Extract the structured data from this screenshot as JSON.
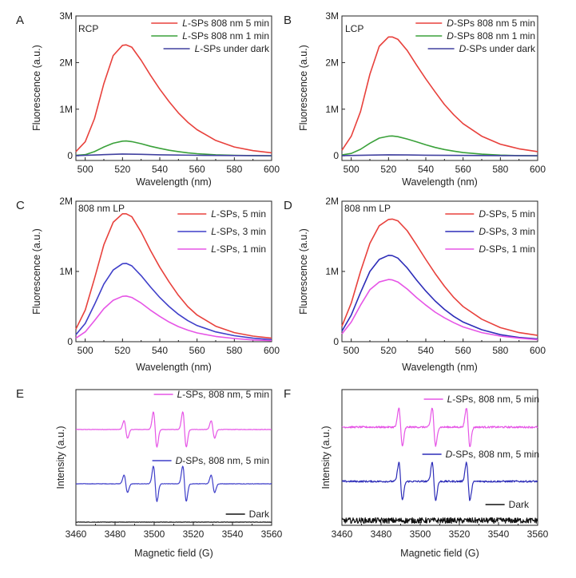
{
  "chart_data": [
    {
      "panel": "A",
      "type": "line",
      "annotation": "RCP",
      "xlabel": "Wavelength (nm)",
      "ylabel": "Fluorescence (a.u.)",
      "xlim": [
        495,
        600
      ],
      "ylim": [
        -100000,
        3000000
      ],
      "xticks": [
        500,
        520,
        540,
        560,
        580,
        600
      ],
      "xtick_labels": [
        "500",
        "520",
        "540",
        "560",
        "580",
        "600"
      ],
      "yticks": [
        0,
        1000000,
        2000000,
        3000000
      ],
      "ytick_labels": [
        "0",
        "1M",
        "2M",
        "3M"
      ],
      "legend_position": "top-right",
      "series": [
        {
          "name_pre": "",
          "name_italic": "L",
          "name_post": "-SPs 808 nm 5 min",
          "color": "#e8413c",
          "x": [
            495,
            500,
            505,
            510,
            515,
            520,
            522,
            525,
            530,
            535,
            540,
            545,
            550,
            555,
            560,
            570,
            580,
            590,
            600
          ],
          "y": [
            90000,
            300000,
            800000,
            1550000,
            2150000,
            2370000,
            2380000,
            2330000,
            2050000,
            1730000,
            1430000,
            1160000,
            920000,
            720000,
            560000,
            330000,
            190000,
            110000,
            65000
          ]
        },
        {
          "name_pre": "",
          "name_italic": "L",
          "name_post": "-SPs 808 nm 1 min",
          "color": "#3aa13a",
          "x": [
            495,
            500,
            505,
            510,
            515,
            520,
            522,
            525,
            530,
            535,
            540,
            545,
            550,
            555,
            560,
            570,
            580,
            590,
            600
          ],
          "y": [
            10000,
            25000,
            90000,
            190000,
            270000,
            315000,
            318000,
            305000,
            260000,
            205000,
            160000,
            120000,
            90000,
            65000,
            45000,
            22000,
            10000,
            4000,
            0
          ]
        },
        {
          "name_pre": "",
          "name_italic": "L",
          "name_post": "-SPs under dark",
          "color": "#40409f",
          "x": [
            495,
            510,
            520,
            530,
            540,
            560,
            580,
            600
          ],
          "y": [
            5000,
            25000,
            38000,
            32000,
            22000,
            12000,
            6000,
            3000
          ]
        }
      ]
    },
    {
      "panel": "B",
      "type": "line",
      "annotation": "LCP",
      "xlabel": "Wavelength (nm)",
      "ylabel": "Fluorescence (a.u.)",
      "xlim": [
        495,
        600
      ],
      "ylim": [
        -100000,
        3000000
      ],
      "xticks": [
        500,
        520,
        540,
        560,
        580,
        600
      ],
      "xtick_labels": [
        "500",
        "520",
        "540",
        "560",
        "580",
        "600"
      ],
      "yticks": [
        0,
        1000000,
        2000000,
        3000000
      ],
      "ytick_labels": [
        "0",
        "1M",
        "2M",
        "3M"
      ],
      "legend_position": "top-right",
      "series": [
        {
          "name_pre": "",
          "name_italic": "D",
          "name_post": "-SPs 808 nm 5 min",
          "color": "#e8413c",
          "x": [
            495,
            500,
            505,
            510,
            515,
            520,
            522,
            525,
            530,
            535,
            540,
            545,
            550,
            555,
            560,
            570,
            580,
            590,
            600
          ],
          "y": [
            120000,
            420000,
            950000,
            1750000,
            2350000,
            2550000,
            2550000,
            2500000,
            2260000,
            1950000,
            1650000,
            1370000,
            1100000,
            880000,
            690000,
            420000,
            250000,
            150000,
            90000
          ]
        },
        {
          "name_pre": "",
          "name_italic": "D",
          "name_post": "-SPs 808 nm 1 min",
          "color": "#3aa13a",
          "x": [
            495,
            500,
            505,
            510,
            515,
            520,
            522,
            525,
            530,
            535,
            540,
            545,
            550,
            555,
            560,
            570,
            580,
            590,
            600
          ],
          "y": [
            20000,
            50000,
            140000,
            270000,
            380000,
            420000,
            425000,
            410000,
            360000,
            300000,
            235000,
            180000,
            135000,
            100000,
            70000,
            35000,
            15000,
            5000,
            0
          ]
        },
        {
          "name_pre": "",
          "name_italic": "D",
          "name_post": "-SPs under dark",
          "color": "#40409f",
          "x": [
            495,
            510,
            520,
            530,
            540,
            560,
            580,
            600
          ],
          "y": [
            5000,
            15000,
            22000,
            18000,
            13000,
            8000,
            5000,
            3000
          ]
        }
      ]
    },
    {
      "panel": "C",
      "type": "line",
      "annotation": "808 nm LP",
      "xlabel": "Wavelength (nm)",
      "ylabel": "Fluorescence (a.u.)",
      "xlim": [
        495,
        600
      ],
      "ylim": [
        0,
        2000000
      ],
      "xticks": [
        500,
        520,
        540,
        560,
        580,
        600
      ],
      "xtick_labels": [
        "500",
        "520",
        "540",
        "560",
        "580",
        "600"
      ],
      "yticks": [
        0,
        1000000,
        2000000
      ],
      "ytick_labels": [
        "0",
        "1M",
        "2M"
      ],
      "legend_position": "top-right",
      "series": [
        {
          "name_pre": "",
          "name_italic": "L",
          "name_post": "-SPs, 5 min",
          "color": "#e8413c",
          "x": [
            495,
            500,
            505,
            510,
            515,
            520,
            522,
            525,
            530,
            535,
            540,
            545,
            550,
            555,
            560,
            570,
            580,
            590,
            600
          ],
          "y": [
            180000,
            450000,
            900000,
            1380000,
            1700000,
            1820000,
            1820000,
            1780000,
            1560000,
            1300000,
            1060000,
            850000,
            660000,
            500000,
            380000,
            220000,
            130000,
            80000,
            50000
          ]
        },
        {
          "name_pre": "",
          "name_italic": "L",
          "name_post": "-SPs, 3 min",
          "color": "#3f3fc9",
          "x": [
            495,
            500,
            505,
            510,
            515,
            520,
            522,
            525,
            530,
            535,
            540,
            545,
            550,
            555,
            560,
            570,
            580,
            590,
            600
          ],
          "y": [
            100000,
            260000,
            530000,
            820000,
            1020000,
            1110000,
            1115000,
            1080000,
            940000,
            780000,
            630000,
            500000,
            390000,
            300000,
            230000,
            140000,
            85000,
            50000,
            30000
          ]
        },
        {
          "name_pre": "",
          "name_italic": "L",
          "name_post": "-SPs, 1 min",
          "color": "#e655e6",
          "x": [
            495,
            500,
            505,
            510,
            515,
            520,
            522,
            525,
            530,
            535,
            540,
            545,
            550,
            555,
            560,
            570,
            580,
            590,
            600
          ],
          "y": [
            50000,
            140000,
            300000,
            470000,
            590000,
            645000,
            650000,
            630000,
            550000,
            450000,
            360000,
            280000,
            215000,
            165000,
            125000,
            75000,
            45000,
            25000,
            15000
          ]
        }
      ]
    },
    {
      "panel": "D",
      "type": "line",
      "annotation": "808 nm LP",
      "xlabel": "Wavelength (nm)",
      "ylabel": "Fluorescence (a.u.)",
      "xlim": [
        495,
        600
      ],
      "ylim": [
        0,
        2000000
      ],
      "xticks": [
        500,
        520,
        540,
        560,
        580,
        600
      ],
      "xtick_labels": [
        "500",
        "520",
        "540",
        "560",
        "580",
        "600"
      ],
      "yticks": [
        0,
        1000000,
        2000000
      ],
      "ytick_labels": [
        "0",
        "1M",
        "2M"
      ],
      "legend_position": "top-right",
      "series": [
        {
          "name_pre": "",
          "name_italic": "D",
          "name_post": "-SPs, 5 min",
          "color": "#e8413c",
          "x": [
            495,
            500,
            505,
            510,
            515,
            520,
            522,
            525,
            530,
            535,
            540,
            545,
            550,
            555,
            560,
            570,
            580,
            590,
            600
          ],
          "y": [
            220000,
            550000,
            1000000,
            1400000,
            1650000,
            1740000,
            1745000,
            1720000,
            1580000,
            1380000,
            1170000,
            970000,
            790000,
            630000,
            500000,
            320000,
            200000,
            130000,
            90000
          ]
        },
        {
          "name_pre": "",
          "name_italic": "D",
          "name_post": "-SPs, 3 min",
          "color": "#2d2db8",
          "x": [
            495,
            500,
            505,
            510,
            515,
            520,
            522,
            525,
            530,
            535,
            540,
            545,
            550,
            555,
            560,
            570,
            580,
            590,
            600
          ],
          "y": [
            150000,
            380000,
            700000,
            1000000,
            1170000,
            1230000,
            1225000,
            1190000,
            1050000,
            880000,
            720000,
            580000,
            460000,
            360000,
            280000,
            170000,
            100000,
            60000,
            40000
          ]
        },
        {
          "name_pre": "",
          "name_italic": "D",
          "name_post": "-SPs, 1 min",
          "color": "#e655e6",
          "x": [
            495,
            500,
            505,
            510,
            515,
            520,
            522,
            525,
            530,
            535,
            540,
            545,
            550,
            555,
            560,
            570,
            580,
            590,
            600
          ],
          "y": [
            110000,
            280000,
            520000,
            740000,
            850000,
            885000,
            880000,
            850000,
            750000,
            630000,
            520000,
            420000,
            340000,
            270000,
            210000,
            130000,
            80000,
            50000,
            30000
          ]
        }
      ]
    },
    {
      "panel": "E",
      "type": "line",
      "xlabel": "Magnetic field (G)",
      "ylabel": "Intensity (a.u.)",
      "xlim": [
        3460,
        3560
      ],
      "yticks_shown": false,
      "xticks": [
        3460,
        3480,
        3500,
        3520,
        3540,
        3560
      ],
      "xtick_labels": [
        "3460",
        "3480",
        "3500",
        "3520",
        "3540",
        "3560"
      ],
      "peak_positions": [
        3485.5,
        3500.5,
        3515.5,
        3530.0
      ],
      "peak_relative_amplitudes": [
        0.5,
        1.0,
        1.0,
        0.5
      ],
      "series": [
        {
          "name_pre": "",
          "name_italic": "L",
          "name_post": "-SPs, 808 nm, 5 min",
          "color": "#e655e6",
          "offset": 100,
          "amplitude": 22
        },
        {
          "name_pre": "",
          "name_italic": "D",
          "name_post": "-SPs, 808 nm, 5 min",
          "color": "#3f3fc9",
          "offset": 50,
          "amplitude": 22
        },
        {
          "name_pre": "Dark",
          "name_italic": "",
          "name_post": "",
          "color": "#111111",
          "offset": 4,
          "amplitude": 0
        }
      ]
    },
    {
      "panel": "F",
      "type": "line",
      "xlabel": "Magnetic field (G)",
      "ylabel": "Intensity (a.u.)",
      "xlim": [
        3460,
        3560
      ],
      "yticks_shown": false,
      "xticks": [
        3460,
        3480,
        3500,
        3520,
        3540,
        3560
      ],
      "xtick_labels": [
        "3460",
        "3480",
        "3500",
        "3520",
        "3540",
        "3560"
      ],
      "peak_positions": [
        3490.0,
        3507.0,
        3524.5
      ],
      "peak_relative_amplitudes": [
        1.0,
        1.0,
        1.0
      ],
      "series": [
        {
          "name_pre": "",
          "name_italic": "L",
          "name_post": "-SPs, 808 nm, 5 min",
          "color": "#e655e6",
          "offset": 100,
          "amplitude": 24
        },
        {
          "name_pre": "",
          "name_italic": "D",
          "name_post": "-SPs, 808 nm, 5 min",
          "color": "#2d2db8",
          "offset": 50,
          "amplitude": 24
        },
        {
          "name_pre": "Dark",
          "name_italic": "",
          "name_post": "",
          "color": "#111111",
          "offset": 6,
          "amplitude": 0
        }
      ]
    }
  ]
}
